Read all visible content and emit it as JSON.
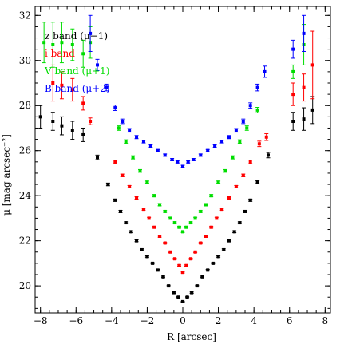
{
  "chart_data": {
    "type": "scatter",
    "title": "",
    "xlabel": "R [arcsec]",
    "ylabel": "μ [mag arcsec⁻²]",
    "xlim": [
      -8.3,
      8.3
    ],
    "ylim": [
      32.4,
      18.8
    ],
    "y_inverted": true,
    "grid": false,
    "legend_position": "top-left",
    "x_ticks": [
      -8,
      -6,
      -4,
      -2,
      0,
      2,
      4,
      6,
      8
    ],
    "y_ticks": [
      20,
      22,
      24,
      26,
      28,
      30,
      32
    ],
    "series": [
      {
        "name": "z band (μ−1)",
        "color": "#000000",
        "points": [
          [
            -8.0,
            27.5,
            0.5
          ],
          [
            -7.3,
            27.3,
            0.4
          ],
          [
            -6.8,
            27.1,
            0.4
          ],
          [
            -6.2,
            26.9,
            0.4
          ],
          [
            -5.6,
            26.7,
            0.3
          ],
          [
            -4.8,
            25.7,
            0.1
          ],
          [
            -4.2,
            24.5,
            0.06
          ],
          [
            -3.8,
            23.8,
            0.05
          ],
          [
            -3.5,
            23.3,
            0.05
          ],
          [
            -3.2,
            22.8,
            0.04
          ],
          [
            -2.9,
            22.4,
            0.04
          ],
          [
            -2.6,
            22.0,
            0.04
          ],
          [
            -2.3,
            21.6,
            0.04
          ],
          [
            -2.0,
            21.3,
            0.03
          ],
          [
            -1.7,
            21.0,
            0.03
          ],
          [
            -1.4,
            20.7,
            0.03
          ],
          [
            -1.1,
            20.4,
            0.03
          ],
          [
            -0.8,
            20.0,
            0.03
          ],
          [
            -0.5,
            19.7,
            0.03
          ],
          [
            -0.25,
            19.5,
            0.02
          ],
          [
            0.0,
            19.3,
            0.02
          ],
          [
            0.25,
            19.5,
            0.02
          ],
          [
            0.5,
            19.7,
            0.03
          ],
          [
            0.8,
            20.0,
            0.03
          ],
          [
            1.1,
            20.4,
            0.03
          ],
          [
            1.4,
            20.7,
            0.03
          ],
          [
            1.7,
            21.0,
            0.03
          ],
          [
            2.0,
            21.3,
            0.03
          ],
          [
            2.3,
            21.6,
            0.04
          ],
          [
            2.6,
            22.0,
            0.04
          ],
          [
            2.9,
            22.4,
            0.04
          ],
          [
            3.2,
            22.8,
            0.04
          ],
          [
            3.5,
            23.3,
            0.05
          ],
          [
            3.8,
            23.8,
            0.05
          ],
          [
            4.2,
            24.6,
            0.06
          ],
          [
            4.8,
            25.8,
            0.12
          ],
          [
            6.2,
            27.3,
            0.4
          ],
          [
            6.8,
            27.4,
            0.5
          ],
          [
            7.3,
            27.8,
            0.6
          ]
        ]
      },
      {
        "name": "i band",
        "color": "#ff0000",
        "points": [
          [
            -7.3,
            29.0,
            0.8
          ],
          [
            -6.8,
            28.9,
            0.6
          ],
          [
            -6.2,
            28.7,
            0.5
          ],
          [
            -5.6,
            28.1,
            0.3
          ],
          [
            -5.2,
            27.3,
            0.15
          ],
          [
            -3.8,
            25.5,
            0.08
          ],
          [
            -3.4,
            24.9,
            0.06
          ],
          [
            -3.0,
            24.4,
            0.05
          ],
          [
            -2.6,
            23.9,
            0.05
          ],
          [
            -2.2,
            23.4,
            0.04
          ],
          [
            -1.9,
            23.0,
            0.04
          ],
          [
            -1.6,
            22.6,
            0.04
          ],
          [
            -1.3,
            22.2,
            0.04
          ],
          [
            -1.0,
            21.9,
            0.03
          ],
          [
            -0.7,
            21.5,
            0.03
          ],
          [
            -0.45,
            21.2,
            0.03
          ],
          [
            -0.2,
            20.9,
            0.03
          ],
          [
            0.0,
            20.6,
            0.03
          ],
          [
            0.2,
            20.9,
            0.03
          ],
          [
            0.45,
            21.2,
            0.03
          ],
          [
            0.7,
            21.5,
            0.03
          ],
          [
            1.0,
            21.9,
            0.03
          ],
          [
            1.3,
            22.2,
            0.04
          ],
          [
            1.6,
            22.6,
            0.04
          ],
          [
            1.9,
            23.0,
            0.04
          ],
          [
            2.2,
            23.4,
            0.04
          ],
          [
            2.6,
            23.9,
            0.05
          ],
          [
            3.0,
            24.4,
            0.05
          ],
          [
            3.4,
            24.9,
            0.06
          ],
          [
            3.8,
            25.5,
            0.08
          ],
          [
            4.3,
            26.3,
            0.12
          ],
          [
            4.7,
            26.6,
            0.15
          ],
          [
            6.2,
            28.5,
            0.5
          ],
          [
            6.8,
            28.8,
            0.6
          ],
          [
            7.3,
            29.8,
            1.5
          ]
        ]
      },
      {
        "name": "V band (μ+1)",
        "color": "#00dd00",
        "points": [
          [
            -7.8,
            30.8,
            0.9
          ],
          [
            -7.3,
            30.7,
            1.0
          ],
          [
            -6.8,
            30.8,
            0.9
          ],
          [
            -6.2,
            30.7,
            0.7
          ],
          [
            -5.6,
            30.3,
            0.6
          ],
          [
            -5.2,
            30.8,
            0.7
          ],
          [
            -3.6,
            27.0,
            0.1
          ],
          [
            -3.2,
            26.4,
            0.08
          ],
          [
            -2.8,
            25.7,
            0.07
          ],
          [
            -2.4,
            25.1,
            0.06
          ],
          [
            -2.0,
            24.6,
            0.05
          ],
          [
            -1.6,
            24.0,
            0.05
          ],
          [
            -1.3,
            23.6,
            0.05
          ],
          [
            -1.0,
            23.3,
            0.04
          ],
          [
            -0.7,
            23.0,
            0.04
          ],
          [
            -0.45,
            22.8,
            0.04
          ],
          [
            -0.2,
            22.6,
            0.04
          ],
          [
            0.0,
            22.4,
            0.03
          ],
          [
            0.2,
            22.6,
            0.04
          ],
          [
            0.45,
            22.8,
            0.04
          ],
          [
            0.7,
            23.0,
            0.04
          ],
          [
            1.0,
            23.3,
            0.04
          ],
          [
            1.3,
            23.6,
            0.05
          ],
          [
            1.6,
            24.0,
            0.05
          ],
          [
            2.0,
            24.6,
            0.05
          ],
          [
            2.4,
            25.1,
            0.06
          ],
          [
            2.8,
            25.7,
            0.07
          ],
          [
            3.2,
            26.4,
            0.08
          ],
          [
            3.6,
            27.0,
            0.1
          ],
          [
            4.2,
            27.8,
            0.12
          ],
          [
            6.2,
            29.5,
            0.3
          ],
          [
            6.8,
            30.7,
            0.9
          ]
        ]
      },
      {
        "name": "B band (μ+2)",
        "color": "#0000ff",
        "points": [
          [
            -5.2,
            31.2,
            0.8
          ],
          [
            -4.8,
            29.8,
            0.25
          ],
          [
            -4.3,
            28.8,
            0.15
          ],
          [
            -3.8,
            27.9,
            0.12
          ],
          [
            -3.4,
            27.3,
            0.1
          ],
          [
            -3.0,
            26.9,
            0.08
          ],
          [
            -2.6,
            26.6,
            0.07
          ],
          [
            -2.2,
            26.4,
            0.06
          ],
          [
            -1.8,
            26.2,
            0.06
          ],
          [
            -1.4,
            26.0,
            0.05
          ],
          [
            -1.0,
            25.8,
            0.05
          ],
          [
            -0.6,
            25.6,
            0.05
          ],
          [
            -0.3,
            25.5,
            0.05
          ],
          [
            0.0,
            25.3,
            0.05
          ],
          [
            0.3,
            25.5,
            0.05
          ],
          [
            0.6,
            25.6,
            0.05
          ],
          [
            1.0,
            25.8,
            0.05
          ],
          [
            1.4,
            26.0,
            0.05
          ],
          [
            1.8,
            26.2,
            0.06
          ],
          [
            2.2,
            26.4,
            0.06
          ],
          [
            2.6,
            26.6,
            0.07
          ],
          [
            3.0,
            26.9,
            0.08
          ],
          [
            3.4,
            27.3,
            0.1
          ],
          [
            3.8,
            28.0,
            0.12
          ],
          [
            4.2,
            28.8,
            0.15
          ],
          [
            4.6,
            29.5,
            0.25
          ],
          [
            6.2,
            30.5,
            0.4
          ],
          [
            6.8,
            31.2,
            0.8
          ]
        ]
      }
    ]
  }
}
